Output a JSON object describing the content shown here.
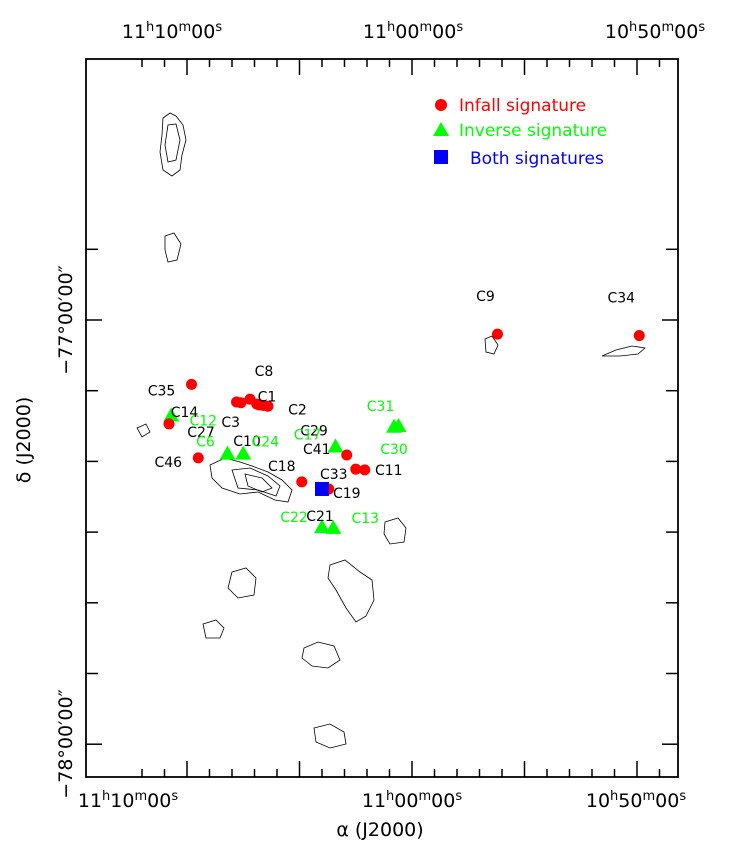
{
  "chart_data": {
    "type": "scatter",
    "xlabel": "α (J2000)",
    "ylabel": "δ (J2000)",
    "x_tick_labels_bottom": [
      "11h10m00s",
      "11h00m00s",
      "10h50m00s"
    ],
    "x_tick_labels_top": [
      "11h10m00s",
      "11h00m00s",
      "10h50m00s"
    ],
    "y_tick_labels": [
      "−77°00′00″",
      "−78°00′00″"
    ],
    "legend": [
      {
        "label": "Infall signature",
        "color": "#ff0000",
        "marker": "circle"
      },
      {
        "label": "Inverse signature",
        "color": "#00ff00",
        "marker": "triangle"
      },
      {
        "label": "Both signatures",
        "color": "#0000ff",
        "marker": "square"
      }
    ],
    "legend_position": "top-right",
    "sources": [
      {
        "name": "C12",
        "ra_min": 10.7,
        "dec_min": -13.5,
        "type": "inverse"
      },
      {
        "name": "C27",
        "ra_min": 10.8,
        "dec_min": -14.7,
        "type": "infall"
      },
      {
        "name": "C9",
        "ra_min": -3.8,
        "dec_min": -2.0,
        "type": "infall"
      },
      {
        "name": "C34",
        "ra_min": -10.1,
        "dec_min": -2.2,
        "type": "infall"
      },
      {
        "name": "C35",
        "ra_min": 9.8,
        "dec_min": -9.1,
        "type": "infall"
      },
      {
        "name": "C8",
        "ra_min": 7.2,
        "dec_min": -11.2,
        "type": "infall"
      },
      {
        "name": "C1",
        "ra_min": 7.6,
        "dec_min": -11.7,
        "type": "infall"
      },
      {
        "name": "C14",
        "ra_min": 7.8,
        "dec_min": -11.6,
        "type": "infall"
      },
      {
        "name": "C3",
        "ra_min": 6.9,
        "dec_min": -11.9,
        "type": "infall"
      },
      {
        "name": "C2",
        "ra_min": 6.6,
        "dec_min": -12.1,
        "type": "infall"
      },
      {
        "name": "C29",
        "ra_min": 6.4,
        "dec_min": -12.2,
        "type": "infall"
      },
      {
        "name": "C10",
        "ra_min": 6.8,
        "dec_min": -12.0,
        "type": "infall"
      },
      {
        "name": "C31",
        "ra_min": 0.6,
        "dec_min": -15.0,
        "type": "inverse"
      },
      {
        "name": "C30",
        "ra_min": 0.8,
        "dec_min": -15.1,
        "type": "inverse"
      },
      {
        "name": "C17",
        "ra_min": 3.4,
        "dec_min": -17.9,
        "type": "inverse"
      },
      {
        "name": "C6",
        "ra_min": 8.2,
        "dec_min": -18.9,
        "type": "inverse"
      },
      {
        "name": "C24",
        "ra_min": 7.5,
        "dec_min": -18.9,
        "type": "inverse"
      },
      {
        "name": "C46",
        "ra_min": 9.5,
        "dec_min": -19.5,
        "type": "infall"
      },
      {
        "name": "C41",
        "ra_min": 2.9,
        "dec_min": -19.1,
        "type": "infall"
      },
      {
        "name": "C11",
        "ra_min": 2.1,
        "dec_min": -21.2,
        "type": "infall"
      },
      {
        "name": "C33",
        "ra_min": 2.5,
        "dec_min": -21.1,
        "type": "infall"
      },
      {
        "name": "C18",
        "ra_min": 4.9,
        "dec_min": -22.9,
        "type": "infall"
      },
      {
        "name": "C19",
        "ra_min": 3.7,
        "dec_min": -23.9,
        "type": "infall"
      },
      {
        "name": "C21",
        "ra_min": 4.0,
        "dec_min": -23.9,
        "type": "both"
      },
      {
        "name": "C22",
        "ra_min": 4.0,
        "dec_min": -29.3,
        "type": "inverse"
      },
      {
        "name": "C13",
        "ra_min": 3.5,
        "dec_min": -29.4,
        "type": "inverse"
      }
    ]
  }
}
